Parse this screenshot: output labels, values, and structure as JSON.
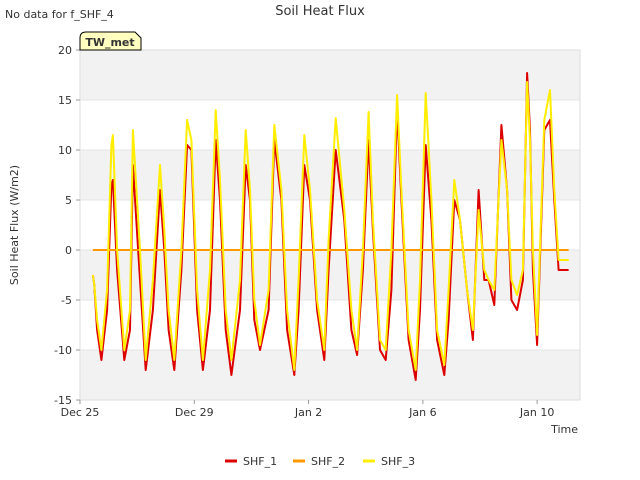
{
  "chart_data": {
    "type": "line",
    "title": "Soil Heat Flux",
    "corner_note": "No data for f_SHF_4",
    "site_badge": "TW_met",
    "xlabel": "Time",
    "ylabel": "Soil Heat Flux (W/m2)",
    "xlim": [
      0,
      17.5
    ],
    "ylim": [
      -15,
      20
    ],
    "yticks": [
      -15,
      -10,
      -5,
      0,
      5,
      10,
      15,
      20
    ],
    "xticks": [
      {
        "value": 0,
        "label": "Dec 25"
      },
      {
        "value": 4,
        "label": "Dec 29"
      },
      {
        "value": 8,
        "label": "Jan 2"
      },
      {
        "value": 12,
        "label": "Jan 6"
      },
      {
        "value": 16,
        "label": "Jan 10"
      }
    ],
    "bands": [
      [
        15,
        20
      ],
      [
        5,
        10
      ],
      [
        -5,
        0
      ],
      [
        -15,
        -10
      ]
    ],
    "series": [
      {
        "name": "SHF_1",
        "color": "#dd0000",
        "x": [
          0.45,
          0.5,
          0.6,
          0.75,
          0.95,
          1.1,
          1.15,
          1.3,
          1.55,
          1.75,
          1.85,
          2.1,
          2.3,
          2.55,
          2.8,
          2.95,
          3.1,
          3.3,
          3.55,
          3.75,
          3.9,
          4.1,
          4.3,
          4.55,
          4.75,
          4.9,
          5.1,
          5.3,
          5.6,
          5.8,
          5.95,
          6.1,
          6.3,
          6.6,
          6.8,
          7.05,
          7.25,
          7.5,
          7.65,
          7.85,
          8.05,
          8.3,
          8.55,
          8.7,
          8.95,
          9.25,
          9.5,
          9.7,
          9.9,
          10.1,
          10.25,
          10.5,
          10.7,
          10.9,
          11.1,
          11.25,
          11.5,
          11.75,
          11.9,
          12.1,
          12.3,
          12.5,
          12.75,
          12.9,
          13.1,
          13.3,
          13.55,
          13.75,
          13.95,
          14.15,
          14.3,
          14.5,
          14.75,
          14.95,
          15.1,
          15.3,
          15.5,
          15.65,
          15.75,
          15.85,
          16.0,
          16.25,
          16.45,
          16.6,
          16.75,
          16.95,
          17.1
        ],
        "values": [
          -2.5,
          -3.5,
          -8,
          -11,
          -6,
          6.5,
          7,
          -2,
          -11,
          -8,
          8.5,
          -3,
          -12,
          -6,
          6,
          0,
          -8,
          -12,
          -2,
          10.5,
          10,
          -6,
          -12,
          -6,
          11,
          5,
          -8,
          -12.5,
          -6,
          8.5,
          5,
          -7,
          -10,
          -6,
          11,
          5,
          -8,
          -12.5,
          -6,
          8.5,
          5,
          -6,
          -11,
          -2,
          10,
          3,
          -8,
          -10.5,
          -2,
          11,
          2,
          -10,
          -11,
          -4,
          14.2,
          5,
          -9,
          -13,
          -6,
          10.5,
          3,
          -9,
          -12.5,
          -7,
          5,
          3,
          -4,
          -9,
          6,
          -3,
          -3,
          -5.5,
          12.5,
          6,
          -5,
          -6,
          -3,
          17.7,
          12,
          -2,
          -9.5,
          12,
          13,
          5,
          -2,
          -2,
          -2
        ]
      },
      {
        "name": "SHF_2",
        "color": "#ff9900",
        "x": [
          0.45,
          17.1
        ],
        "values": [
          0,
          0
        ]
      },
      {
        "name": "SHF_3",
        "color": "#ffee00",
        "x": [
          0.45,
          0.5,
          0.6,
          0.75,
          0.95,
          1.1,
          1.15,
          1.3,
          1.55,
          1.75,
          1.85,
          2.1,
          2.3,
          2.55,
          2.8,
          2.95,
          3.1,
          3.3,
          3.55,
          3.75,
          3.9,
          4.1,
          4.3,
          4.55,
          4.75,
          4.9,
          5.1,
          5.3,
          5.6,
          5.8,
          5.95,
          6.1,
          6.3,
          6.6,
          6.8,
          7.05,
          7.25,
          7.5,
          7.65,
          7.85,
          8.05,
          8.3,
          8.55,
          8.7,
          8.95,
          9.25,
          9.5,
          9.7,
          9.9,
          10.1,
          10.25,
          10.5,
          10.7,
          10.9,
          11.1,
          11.25,
          11.5,
          11.75,
          11.9,
          12.1,
          12.3,
          12.5,
          12.75,
          12.9,
          13.1,
          13.3,
          13.55,
          13.75,
          13.95,
          14.15,
          14.3,
          14.5,
          14.75,
          14.95,
          15.1,
          15.3,
          15.5,
          15.65,
          15.75,
          15.85,
          16.0,
          16.25,
          16.45,
          16.6,
          16.75,
          16.95,
          17.1
        ],
        "values": [
          -2.5,
          -3.5,
          -7,
          -10,
          -4,
          10.5,
          11.5,
          0,
          -10,
          -6,
          12,
          0,
          -11,
          -3,
          8.5,
          2,
          -6,
          -11,
          0,
          13,
          11,
          -4,
          -11,
          -2,
          14,
          7,
          -6,
          -11,
          -3,
          12,
          6,
          -5,
          -9.5,
          -4,
          12.5,
          6,
          -6,
          -12,
          -3,
          11.5,
          6,
          -5,
          -10,
          1,
          13.2,
          4,
          -6,
          -10,
          0,
          13.8,
          3,
          -9,
          -10,
          0,
          15.5,
          6,
          -8,
          -12,
          -3,
          15.7,
          5,
          -8,
          -11.5,
          -4,
          7,
          3,
          -4,
          -8,
          4,
          -2,
          -3,
          -4,
          11,
          6,
          -3,
          -4.5,
          -2,
          16.8,
          11,
          0,
          -8.5,
          13,
          16,
          6,
          -1,
          -1,
          -1
        ]
      }
    ]
  }
}
